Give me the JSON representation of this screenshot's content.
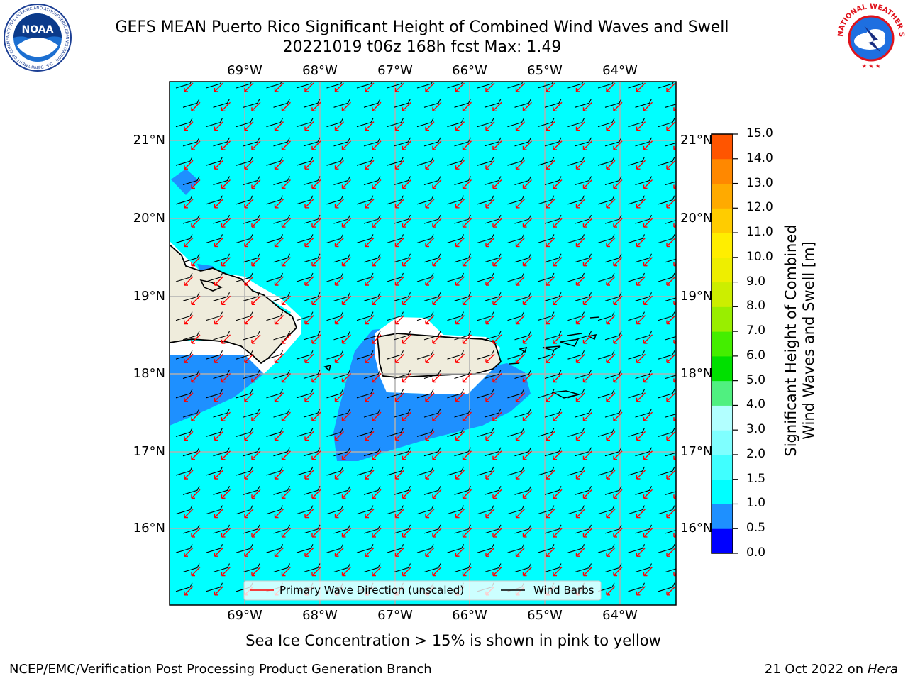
{
  "header": {
    "title_line1": "GEFS MEAN Puerto Rico Significant Height of Combined Wind Waves and Swell",
    "title_line2": "20221019 t06z 168h fcst   Max: 1.49",
    "noaa_logo_text": "NOAA",
    "noaa_ring_text": "NATIONAL OCEANIC AND ATMOSPHERIC ADMINISTRATION · U.S. DEPARTMENT OF COMMERCE",
    "nws_ring_text": "NATIONAL WEATHER SERVICE"
  },
  "map": {
    "lon_labels": [
      "69°W",
      "68°W",
      "67°W",
      "66°W",
      "65°W",
      "64°W"
    ],
    "lat_labels": [
      "21°N",
      "20°N",
      "19°N",
      "18°N",
      "17°N",
      "16°N"
    ],
    "legend": {
      "wave_label": "Primary Wave Direction (unscaled)",
      "barb_label": "Wind Barbs"
    }
  },
  "colorbar": {
    "label_line1": "Significant Height of Combined",
    "label_line2": "Wind Waves and Swell [m]",
    "ticks": [
      "15.0",
      "14.0",
      "13.0",
      "12.0",
      "11.0",
      "10.0",
      "9.0",
      "8.0",
      "7.0",
      "6.0",
      "5.0",
      "4.0",
      "3.0",
      "2.0",
      "1.5",
      "1.0",
      "0.5",
      "0.0"
    ],
    "colors": [
      "#0000ff",
      "#1e90ff",
      "#00ffff",
      "#40ffff",
      "#7fffff",
      "#b2ffff",
      "#50f080",
      "#00e000",
      "#44ee00",
      "#99ee00",
      "#ccee00",
      "#eeee00",
      "#ffee00",
      "#ffcc00",
      "#ffaa00",
      "#ff8800",
      "#ff5500",
      "#ff2200",
      "#ff0000"
    ]
  },
  "sea_ice_note": "Sea Ice Concentration > 15% is shown in pink to yellow",
  "footer": {
    "left": "NCEP/EMC/Verification Post Processing Product Generation Branch",
    "date": "21 Oct 2022 on ",
    "machine": "Hera"
  }
}
